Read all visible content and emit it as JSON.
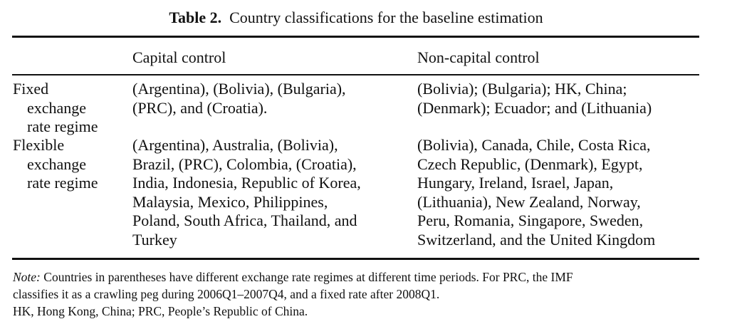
{
  "caption": {
    "label": "Table 2.",
    "title": "Country classifications for the baseline estimation"
  },
  "table": {
    "headers": [
      "Capital control",
      "Non-capital control"
    ],
    "rows": [
      {
        "label_lines": [
          "Fixed",
          "exchange",
          "rate regime"
        ],
        "capital_control_lines": [
          "(Argentina), (Bolivia), (Bulgaria),",
          "(PRC), and (Croatia)."
        ],
        "non_capital_control_lines": [
          "(Bolivia); (Bulgaria); HK, China;",
          "(Denmark); Ecuador; and (Lithuania)"
        ]
      },
      {
        "label_lines": [
          "Flexible",
          "exchange",
          "rate regime"
        ],
        "capital_control_lines": [
          "(Argentina), Australia, (Bolivia),",
          "Brazil, (PRC), Colombia, (Croatia),",
          "India, Indonesia, Republic of Korea,",
          "Malaysia, Mexico, Philippines,",
          "Poland, South Africa, Thailand, and",
          "Turkey"
        ],
        "non_capital_control_lines": [
          "(Bolivia), Canada, Chile, Costa Rica,",
          "Czech Republic, (Denmark), Egypt,",
          "Hungary, Ireland, Israel, Japan,",
          "(Lithuania), New Zealand, Norway,",
          "Peru, Romania, Singapore, Sweden,",
          "Switzerland, and the United Kingdom"
        ]
      }
    ]
  },
  "note": {
    "prefix": "Note:",
    "line1": " Countries in parentheses have different exchange rate regimes at different time periods. For PRC, the IMF",
    "line2": "classifies it as a crawling peg during 2006Q1–2007Q4, and a fixed rate after 2008Q1.",
    "line3": "HK, Hong Kong, China; PRC, People’s Republic of China."
  }
}
